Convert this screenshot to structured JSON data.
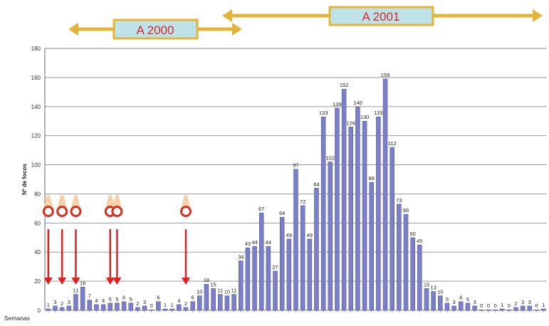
{
  "ranges": [
    {
      "label": "A 2000"
    },
    {
      "label": "A 2001"
    }
  ],
  "colors": {
    "bar": "#7b7fc8",
    "bar_edge": "#4b4f98",
    "range_arrow": "#e3b43a",
    "range_box_fill": "#bfe1e8",
    "range_box_border": "#e3b43a",
    "range_text": "#d22a2a",
    "marker_arrow": "#e02020",
    "marker_circle": "#d83020",
    "marker_flame": "#f5c89a"
  },
  "chart_data": {
    "type": "bar",
    "ylabel": "Nº de focos",
    "xlabel": "Semanas",
    "ylim": [
      0,
      180
    ],
    "yticks": [
      0,
      20,
      40,
      60,
      80,
      100,
      120,
      140,
      160,
      180
    ],
    "grid": true,
    "values": [
      1,
      3,
      2,
      3,
      11,
      16,
      7,
      4,
      4,
      5,
      5,
      6,
      5,
      2,
      3,
      0,
      6,
      1,
      1,
      4,
      2,
      6,
      10,
      18,
      15,
      11,
      10,
      11,
      34,
      43,
      44,
      67,
      44,
      27,
      64,
      49,
      97,
      72,
      49,
      84,
      133,
      102,
      139,
      152,
      126,
      140,
      130,
      88,
      133,
      159,
      112,
      73,
      66,
      50,
      45,
      15,
      13,
      10,
      5,
      3,
      6,
      5,
      3,
      0,
      0,
      0,
      1,
      0,
      2,
      3,
      3,
      0,
      1
    ],
    "data_labels": [
      "1",
      "3",
      "2",
      "3",
      "11",
      "16",
      "7",
      "4",
      "4",
      "5",
      "5",
      "6",
      "5",
      "2",
      "3",
      "0",
      "6",
      "1",
      "1",
      "4",
      "2",
      "6",
      "10",
      "18",
      "15",
      "11",
      "10",
      "11",
      "34",
      "43",
      "44",
      "67",
      "44",
      "27",
      "64",
      "49",
      "97",
      "72",
      "49",
      "84",
      "133",
      "102",
      "139",
      "152",
      "126",
      "140",
      "130",
      "88",
      "133",
      "159",
      "112",
      "73",
      "66",
      "50",
      "45",
      "15",
      "13",
      "10",
      "5",
      "3",
      "6",
      "5",
      "3",
      "0",
      "0",
      "0",
      "1",
      "0",
      "2",
      "3",
      "3",
      "0",
      "1"
    ],
    "marked_weeks": [
      0,
      2,
      4,
      9,
      10,
      20
    ]
  }
}
